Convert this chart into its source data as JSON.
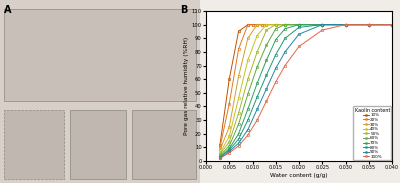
{
  "panel_b_title": "B",
  "panel_a_title": "A",
  "xlabel": "Water content (g/g)",
  "ylabel": "Pore gas relative humidity (%RH)",
  "xlim": [
    0.0,
    0.04
  ],
  "ylim": [
    0,
    110
  ],
  "yticks": [
    0,
    10,
    20,
    30,
    40,
    50,
    60,
    70,
    80,
    90,
    100,
    110
  ],
  "xticks": [
    0.0,
    0.005,
    0.01,
    0.015,
    0.02,
    0.025,
    0.03,
    0.035,
    0.04
  ],
  "legend_title": "Kaolin content",
  "series": [
    {
      "label": "10%",
      "color": "#c05000",
      "x": [
        0.003,
        0.005,
        0.007,
        0.009,
        0.01,
        0.012,
        0.015,
        0.017,
        0.02,
        0.025,
        0.03,
        0.035,
        0.04
      ],
      "y": [
        12,
        60,
        95,
        100,
        100,
        100,
        100,
        100,
        100,
        100,
        100,
        100,
        100
      ]
    },
    {
      "label": "20%",
      "color": "#e07820",
      "x": [
        0.003,
        0.005,
        0.007,
        0.009,
        0.011,
        0.013,
        0.015,
        0.017,
        0.02,
        0.025,
        0.03,
        0.035,
        0.04
      ],
      "y": [
        10,
        42,
        82,
        100,
        100,
        100,
        100,
        100,
        100,
        100,
        100,
        100,
        100
      ]
    },
    {
      "label": "30%",
      "color": "#d4a020",
      "x": [
        0.003,
        0.005,
        0.007,
        0.009,
        0.011,
        0.013,
        0.015,
        0.017,
        0.02,
        0.025,
        0.03,
        0.035,
        0.04
      ],
      "y": [
        8,
        25,
        62,
        90,
        100,
        100,
        100,
        100,
        100,
        100,
        100,
        100,
        100
      ]
    },
    {
      "label": "40%",
      "color": "#c8c020",
      "x": [
        0.003,
        0.005,
        0.007,
        0.009,
        0.011,
        0.013,
        0.015,
        0.017,
        0.02,
        0.025,
        0.03,
        0.035,
        0.04
      ],
      "y": [
        6,
        18,
        46,
        74,
        92,
        100,
        100,
        100,
        100,
        100,
        100,
        100,
        100
      ]
    },
    {
      "label": "50%",
      "color": "#a0b830",
      "x": [
        0.003,
        0.005,
        0.007,
        0.009,
        0.011,
        0.013,
        0.015,
        0.017,
        0.02,
        0.025,
        0.03,
        0.035,
        0.04
      ],
      "y": [
        5,
        14,
        35,
        60,
        80,
        96,
        100,
        100,
        100,
        100,
        100,
        100,
        100
      ]
    },
    {
      "label": "60%",
      "color": "#60a840",
      "x": [
        0.003,
        0.005,
        0.007,
        0.009,
        0.011,
        0.013,
        0.015,
        0.017,
        0.02,
        0.025,
        0.03,
        0.035,
        0.04
      ],
      "y": [
        4,
        11,
        27,
        49,
        69,
        85,
        97,
        100,
        100,
        100,
        100,
        100,
        100
      ]
    },
    {
      "label": "70%",
      "color": "#30a060",
      "x": [
        0.003,
        0.005,
        0.007,
        0.009,
        0.011,
        0.013,
        0.015,
        0.017,
        0.02,
        0.025,
        0.03,
        0.035,
        0.04
      ],
      "y": [
        3,
        9,
        20,
        38,
        57,
        74,
        89,
        97,
        100,
        100,
        100,
        100,
        100
      ]
    },
    {
      "label": "80%",
      "color": "#209878",
      "x": [
        0.003,
        0.005,
        0.007,
        0.009,
        0.011,
        0.013,
        0.015,
        0.017,
        0.02,
        0.025,
        0.03,
        0.035,
        0.04
      ],
      "y": [
        3,
        8,
        16,
        30,
        47,
        63,
        78,
        90,
        98,
        100,
        100,
        100,
        100
      ]
    },
    {
      "label": "90%",
      "color": "#2088a0",
      "x": [
        0.003,
        0.005,
        0.007,
        0.009,
        0.011,
        0.013,
        0.015,
        0.017,
        0.02,
        0.025,
        0.03,
        0.035,
        0.04
      ],
      "y": [
        2,
        7,
        13,
        23,
        38,
        53,
        68,
        80,
        93,
        100,
        100,
        100,
        100
      ]
    },
    {
      "label": "100%",
      "color": "#e06848",
      "x": [
        0.003,
        0.005,
        0.007,
        0.009,
        0.011,
        0.013,
        0.015,
        0.017,
        0.02,
        0.025,
        0.03,
        0.035,
        0.04
      ],
      "y": [
        2,
        6,
        11,
        19,
        30,
        44,
        58,
        70,
        84,
        96,
        100,
        100,
        100
      ]
    }
  ],
  "bg_color": "#f0ece8",
  "panel_a_bg": "#d8d0c8"
}
